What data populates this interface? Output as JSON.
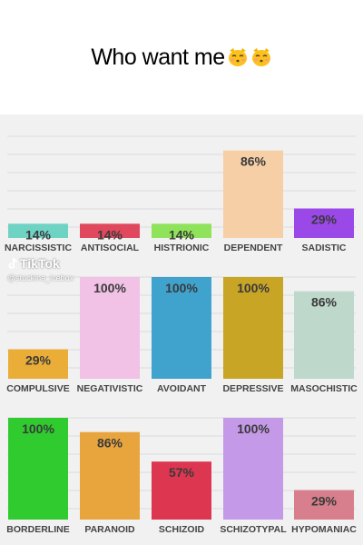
{
  "caption": {
    "text": "Who want me",
    "emojis": [
      "kissing-cat-emoji",
      "kissing-cat-emoji"
    ]
  },
  "watermark": {
    "brand": "TikTok",
    "handle": "@stuckina_icebox",
    "icon": "tiktok-note-icon"
  },
  "chart_data": [
    {
      "type": "bar",
      "categories": [
        "NARCISSISTIC",
        "ANTISOCIAL",
        "HISTRIONIC",
        "DEPENDENT",
        "SADISTIC"
      ],
      "values": [
        14,
        14,
        14,
        86,
        29
      ],
      "labels": [
        "14%",
        "14%",
        "14%",
        "86%",
        "29%"
      ],
      "colors": [
        "#6fd3c4",
        "#e0485e",
        "#8fe35a",
        "#f6cfa6",
        "#9a48e8"
      ],
      "ylim": [
        0,
        100
      ]
    },
    {
      "type": "bar",
      "categories": [
        "COMPULSIVE",
        "NEGATIVISTIC",
        "AVOIDANT",
        "DEPRESSIVE",
        "MASOCHISTIC"
      ],
      "values": [
        29,
        100,
        100,
        100,
        86
      ],
      "labels": [
        "29%",
        "100%",
        "100%",
        "100%",
        "86%"
      ],
      "colors": [
        "#e9ad38",
        "#f1c2e6",
        "#3fa3cd",
        "#c9a526",
        "#bed8cb"
      ],
      "ylim": [
        0,
        100
      ]
    },
    {
      "type": "bar",
      "categories": [
        "BORDERLINE",
        "PARANOID",
        "SCHIZOID",
        "SCHIZOTYPAL",
        "HYPOMANIAC"
      ],
      "values": [
        100,
        86,
        57,
        100,
        29
      ],
      "labels": [
        "100%",
        "86%",
        "57%",
        "100%",
        "29%"
      ],
      "colors": [
        "#2fcb2f",
        "#e8a53d",
        "#dd3650",
        "#c49ae8",
        "#d77f8c"
      ],
      "ylim": [
        0,
        100
      ]
    }
  ]
}
